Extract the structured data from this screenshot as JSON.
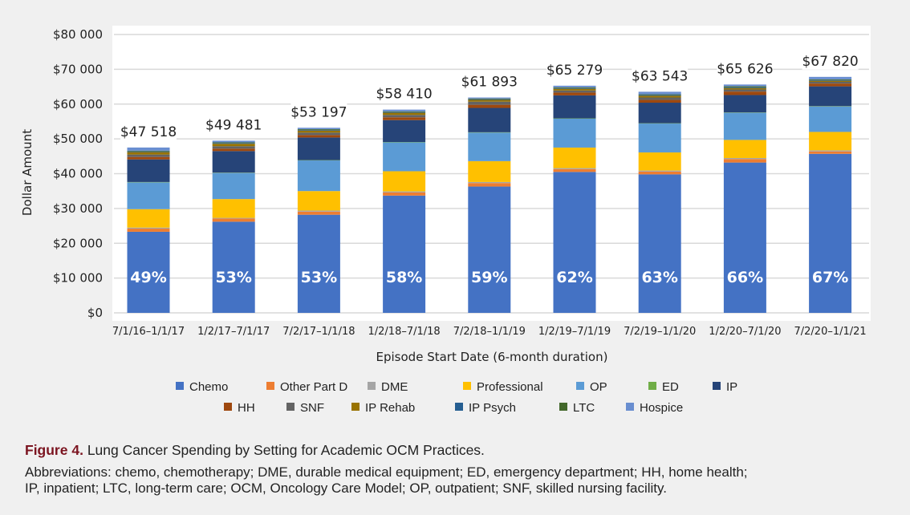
{
  "chart_data": {
    "type": "bar",
    "stacked": true,
    "xlabel": "Episode Start Date (6-month duration)",
    "ylabel": "Dollar Amount",
    "ylim": [
      0,
      80000
    ],
    "yticks": [
      "$0",
      "$10 000",
      "$20 000",
      "$30 000",
      "$40 000",
      "$50 000",
      "$60 000",
      "$70 000",
      "$80 000"
    ],
    "grid": true,
    "legend_position": "bottom",
    "categories": [
      "7/1/16–1/1/17",
      "1/2/17–7/1/17",
      "7/2/17–1/1/18",
      "1/2/18–7/1/18",
      "7/2/18–1/1/19",
      "1/2/19–7/1/19",
      "7/2/19–1/1/20",
      "1/2/20–7/1/20",
      "7/2/20–1/1/21"
    ],
    "totals": [
      "$47 518",
      "$49 481",
      "$53 197",
      "$58 410",
      "$61 893",
      "$65 279",
      "$63 543",
      "$65 626",
      "$67 820"
    ],
    "chemo_share_labels": [
      "49%",
      "53%",
      "53%",
      "58%",
      "59%",
      "62%",
      "63%",
      "66%",
      "67%"
    ],
    "series": [
      {
        "name": "Chemo",
        "color": "#4472c4",
        "values": [
          23300,
          26200,
          28200,
          33700,
          36300,
          40500,
          39800,
          43200,
          45700
        ]
      },
      {
        "name": "Other Part D",
        "color": "#ed7d31",
        "values": [
          900,
          900,
          900,
          900,
          1000,
          800,
          800,
          1000,
          700
        ]
      },
      {
        "name": "DME",
        "color": "#a5a5a5",
        "values": [
          300,
          200,
          300,
          300,
          300,
          300,
          300,
          300,
          300
        ]
      },
      {
        "name": "Professional",
        "color": "#ffc000",
        "values": [
          5300,
          5400,
          5600,
          5800,
          6000,
          5900,
          5200,
          5200,
          5300
        ]
      },
      {
        "name": "OP",
        "color": "#5b9bd5",
        "values": [
          7700,
          7500,
          8800,
          8300,
          8200,
          8300,
          8300,
          7800,
          7300
        ]
      },
      {
        "name": "ED",
        "color": "#70ad47",
        "values": [
          100,
          100,
          100,
          100,
          100,
          100,
          100,
          100,
          100
        ]
      },
      {
        "name": "IP",
        "color": "#264478",
        "values": [
          6500,
          6200,
          6500,
          6300,
          7000,
          6600,
          5900,
          5000,
          5700
        ]
      },
      {
        "name": "HH",
        "color": "#9e480e",
        "values": [
          700,
          700,
          700,
          800,
          900,
          800,
          800,
          1000,
          800
        ]
      },
      {
        "name": "SNF",
        "color": "#636363",
        "values": [
          700,
          700,
          700,
          700,
          900,
          600,
          700,
          600,
          500
        ]
      },
      {
        "name": "IP Rehab",
        "color": "#997300",
        "values": [
          700,
          700,
          600,
          600,
          500,
          500,
          500,
          400,
          300
        ]
      },
      {
        "name": "IP Psych",
        "color": "#255e91",
        "values": [
          200,
          200,
          200,
          200,
          200,
          200,
          200,
          200,
          200
        ]
      },
      {
        "name": "LTC",
        "color": "#43682b",
        "values": [
          200,
          200,
          200,
          200,
          200,
          200,
          200,
          300,
          200
        ]
      },
      {
        "name": "Hospice",
        "color": "#698ed0",
        "values": [
          918,
          481,
          397,
          510,
          293,
          479,
          743,
          526,
          720
        ]
      }
    ]
  },
  "caption": {
    "figure_label": "Figure 4.",
    "title": "Lung Cancer Spending by Setting for Academic OCM Practices.",
    "abbreviations_line1": "Abbreviations: chemo, chemotherapy; DME, durable medical equipment; ED, emergency department; HH, home health;",
    "abbreviations_line2": "IP, inpatient; LTC, long-term care; OCM, Oncology Care Model; OP, outpatient; SNF, skilled nursing facility."
  }
}
